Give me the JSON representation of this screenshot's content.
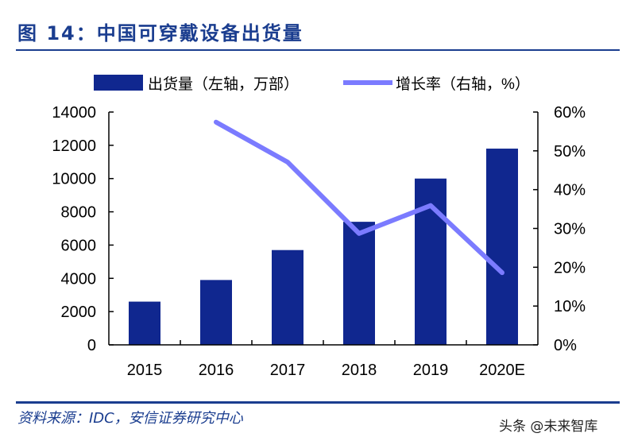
{
  "title": "图 14：中国可穿戴设备出货量",
  "source": "资料来源：IDC，安信证券研究中心",
  "watermark": "头条 @未来智库",
  "chart_data": {
    "type": "bar+line",
    "categories": [
      "2015",
      "2016",
      "2017",
      "2018",
      "2019",
      "2020E"
    ],
    "series": [
      {
        "name": "出货量（左轴，万部）",
        "type": "bar",
        "axis": "left",
        "color": "#10278f",
        "values": [
          2600,
          3900,
          5700,
          7400,
          10000,
          11800
        ]
      },
      {
        "name": "增长率（右轴，%）",
        "type": "line",
        "axis": "right",
        "color": "#7b7bff",
        "values": [
          null,
          57.4,
          47.1,
          28.7,
          35.9,
          18.6
        ]
      }
    ],
    "left_axis": {
      "ylim": [
        0,
        14000
      ],
      "ticks": [
        "0",
        "2000",
        "4000",
        "6000",
        "8000",
        "10000",
        "12000",
        "14000"
      ]
    },
    "right_axis": {
      "ylim": [
        0,
        60
      ],
      "ticks": [
        "0%",
        "10%",
        "20%",
        "30%",
        "40%",
        "50%",
        "60%"
      ]
    },
    "legend": "top",
    "grid": false
  }
}
